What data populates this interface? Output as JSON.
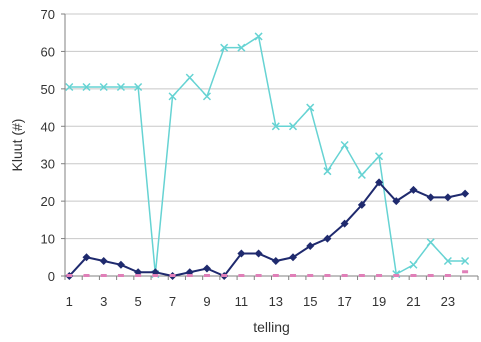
{
  "chart_data": {
    "type": "line",
    "xlabel": "telling",
    "ylabel": "Kluut (#)",
    "x": [
      1,
      2,
      3,
      4,
      5,
      6,
      7,
      8,
      9,
      10,
      11,
      12,
      13,
      14,
      15,
      16,
      17,
      18,
      19,
      20,
      21,
      22,
      23,
      24
    ],
    "xticks": [
      1,
      3,
      5,
      7,
      9,
      11,
      13,
      15,
      17,
      19,
      21,
      23
    ],
    "ylim": [
      0,
      70
    ],
    "yticks": [
      0,
      10,
      20,
      30,
      40,
      50,
      60,
      70
    ],
    "grid": true,
    "series": [
      {
        "marker": "x",
        "color": "#66d3d3",
        "values": [
          50.5,
          50.5,
          50.5,
          50.5,
          50.5,
          0.5,
          48,
          53,
          48,
          61,
          61,
          64,
          40,
          40,
          45,
          28,
          35,
          27,
          32,
          0.5,
          3,
          9,
          4,
          4
        ]
      },
      {
        "marker": "diamond",
        "color": "#1f2a6e",
        "values": [
          0,
          5,
          4,
          3,
          1,
          1,
          0,
          1,
          2,
          0,
          6,
          6,
          4,
          5,
          8,
          10,
          14,
          19,
          25,
          20,
          23,
          21,
          21,
          22
        ]
      },
      {
        "marker": "dash",
        "color": "#e07fb8",
        "values": [
          0,
          0,
          0,
          0,
          0,
          0,
          0,
          0,
          0,
          0,
          0,
          0,
          0,
          0,
          0,
          0,
          0,
          0,
          0,
          0,
          0,
          0,
          0,
          1
        ]
      }
    ]
  }
}
